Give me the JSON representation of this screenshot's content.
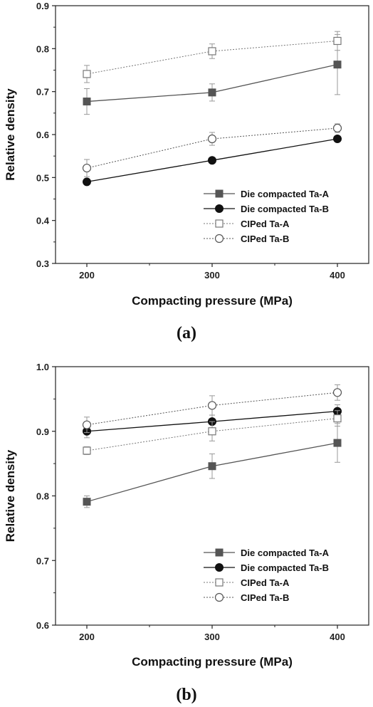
{
  "chart_data": [
    {
      "type": "line",
      "panel_label": "(a)",
      "xlabel": "Compacting pressure (MPa)",
      "ylabel": "Relative density",
      "x": [
        200,
        300,
        400
      ],
      "xlim": [
        175,
        425
      ],
      "xticks": [
        200,
        300,
        400
      ],
      "ylim": [
        0.3,
        0.9
      ],
      "yticks": [
        0.3,
        0.4,
        0.5,
        0.6,
        0.7,
        0.8,
        0.9
      ],
      "legend_position": "bottom-right",
      "grid": false,
      "series": [
        {
          "name": "Die compacted Ta-A",
          "marker": "square-filled",
          "line": "solid",
          "color": "#555555",
          "values": [
            0.677,
            0.698,
            0.763
          ],
          "errors": [
            0.03,
            0.02,
            0.07
          ]
        },
        {
          "name": "Die compacted Ta-B",
          "marker": "circle-filled",
          "line": "solid",
          "color": "#111111",
          "values": [
            0.49,
            0.54,
            0.59
          ],
          "errors": [
            0.0,
            0.0,
            0.0
          ]
        },
        {
          "name": "CIPed Ta-A",
          "marker": "square-open",
          "line": "dotted",
          "color": "#777777",
          "values": [
            0.741,
            0.794,
            0.818
          ],
          "errors": [
            0.02,
            0.017,
            0.022
          ]
        },
        {
          "name": "CIPed Ta-B",
          "marker": "circle-open",
          "line": "dotted",
          "color": "#555555",
          "values": [
            0.522,
            0.59,
            0.615
          ],
          "errors": [
            0.02,
            0.015,
            0.01
          ]
        }
      ]
    },
    {
      "type": "line",
      "panel_label": "(b)",
      "xlabel": "Compacting pressure (MPa)",
      "ylabel": "Relative density",
      "x": [
        200,
        300,
        400
      ],
      "xlim": [
        175,
        425
      ],
      "xticks": [
        200,
        300,
        400
      ],
      "ylim": [
        0.6,
        1.0
      ],
      "yticks": [
        0.6,
        0.7,
        0.8,
        0.9,
        1.0
      ],
      "legend_position": "bottom-right",
      "grid": false,
      "series": [
        {
          "name": "Die compacted Ta-A",
          "marker": "square-filled",
          "line": "solid",
          "color": "#555555",
          "values": [
            0.791,
            0.846,
            0.882
          ],
          "errors": [
            0.009,
            0.019,
            0.03
          ]
        },
        {
          "name": "Die compacted Ta-B",
          "marker": "circle-filled",
          "line": "solid",
          "color": "#111111",
          "values": [
            0.9,
            0.915,
            0.931
          ],
          "errors": [
            0.01,
            0.01,
            0.01
          ]
        },
        {
          "name": "CIPed Ta-A",
          "marker": "square-open",
          "line": "dotted",
          "color": "#777777",
          "values": [
            0.87,
            0.9,
            0.92
          ],
          "errors": [
            0.006,
            0.015,
            0.012
          ]
        },
        {
          "name": "CIPed Ta-B",
          "marker": "circle-open",
          "line": "dotted",
          "color": "#555555",
          "values": [
            0.91,
            0.94,
            0.96
          ],
          "errors": [
            0.012,
            0.015,
            0.012
          ]
        }
      ]
    }
  ]
}
